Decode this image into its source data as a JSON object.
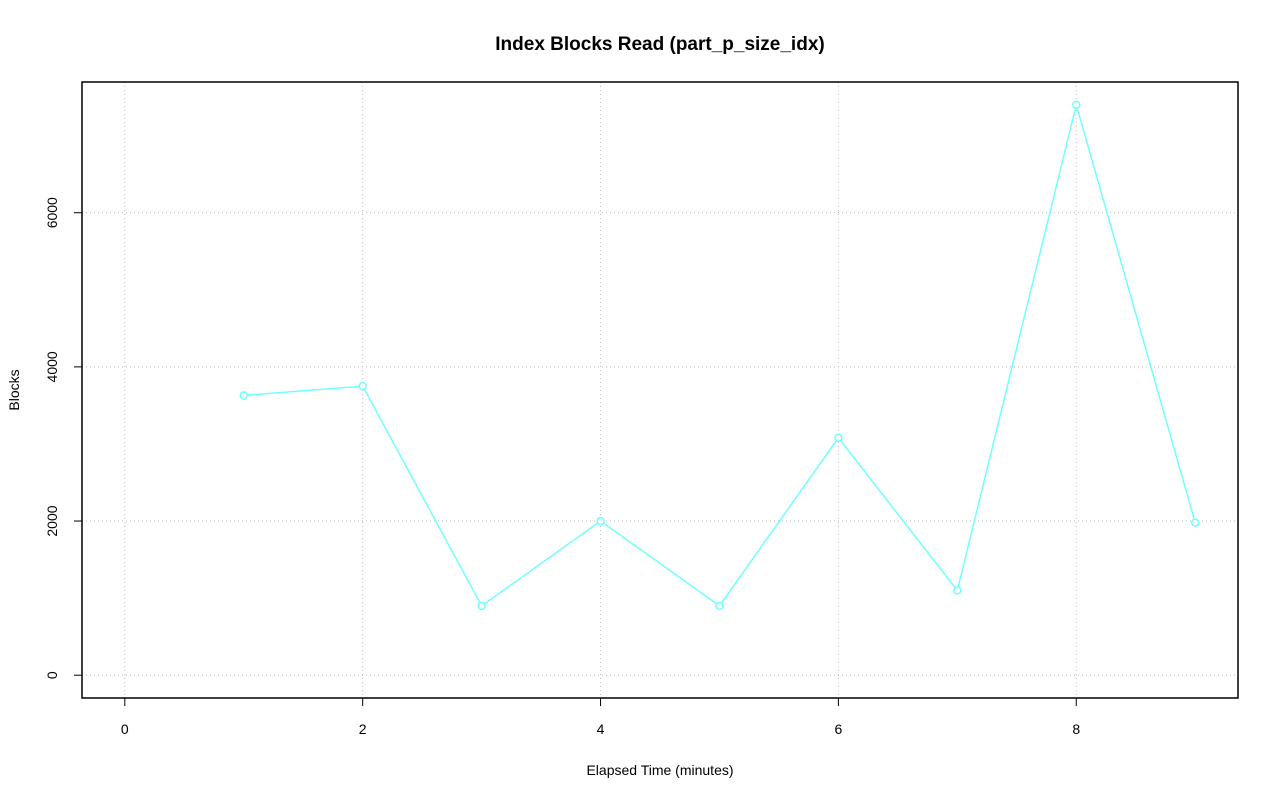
{
  "chart_data": {
    "type": "line",
    "title": "Index Blocks Read (part_p_size_idx)",
    "x_label": "Elapsed Time (minutes)",
    "y_label": "Blocks",
    "x": [
      1,
      2,
      3,
      4,
      5,
      6,
      7,
      8,
      9
    ],
    "series": [
      {
        "name": "part_p_size_idx",
        "color": "#70ffff",
        "values": [
          3630,
          3750,
          900,
          2000,
          900,
          3080,
          1100,
          7400,
          1980
        ]
      }
    ],
    "xlim": [
      -0.36,
      9.36
    ],
    "xticks": [
      0,
      2,
      4,
      6,
      8
    ],
    "ylim": [
      -296,
      7696
    ],
    "yticks": [
      0,
      2000,
      4000,
      6000
    ],
    "grid": true,
    "markers": true
  }
}
